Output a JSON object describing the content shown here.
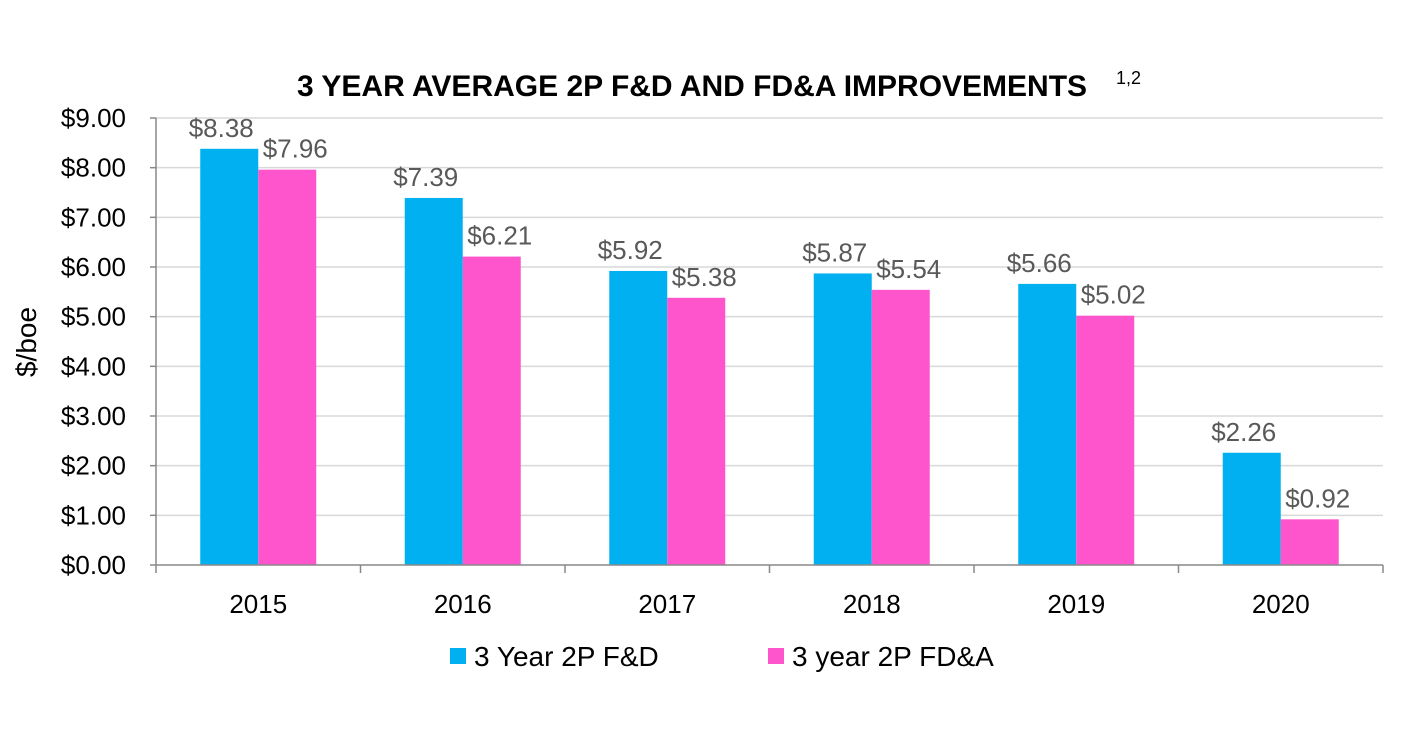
{
  "chart_data": {
    "type": "bar",
    "title": "3 YEAR AVERAGE 2P F&D AND FD&A IMPROVEMENTS",
    "title_superscript": "1,2",
    "xlabel": "",
    "ylabel": "$/boe",
    "ylim": [
      0,
      9
    ],
    "yticks": [
      0,
      1,
      2,
      3,
      4,
      5,
      6,
      7,
      8,
      9
    ],
    "ytick_labels": [
      "$0.00",
      "$1.00",
      "$2.00",
      "$3.00",
      "$4.00",
      "$5.00",
      "$6.00",
      "$7.00",
      "$8.00",
      "$9.00"
    ],
    "grid": true,
    "legend_position": "bottom",
    "categories": [
      "2015",
      "2016",
      "2017",
      "2018",
      "2019",
      "2020"
    ],
    "series": [
      {
        "name": "3 Year 2P F&D",
        "color": "#00b0f0",
        "values": [
          8.38,
          7.39,
          5.92,
          5.87,
          5.66,
          2.26
        ],
        "labels": [
          "$8.38",
          "$7.39",
          "$5.92",
          "$5.87",
          "$5.66",
          "$2.26"
        ]
      },
      {
        "name": "3 year 2P FD&A",
        "color": "#ff55cc",
        "values": [
          7.96,
          6.21,
          5.38,
          5.54,
          5.02,
          0.92
        ],
        "labels": [
          "$7.96",
          "$6.21",
          "$5.38",
          "$5.54",
          "$5.02",
          "$0.92"
        ]
      }
    ]
  }
}
